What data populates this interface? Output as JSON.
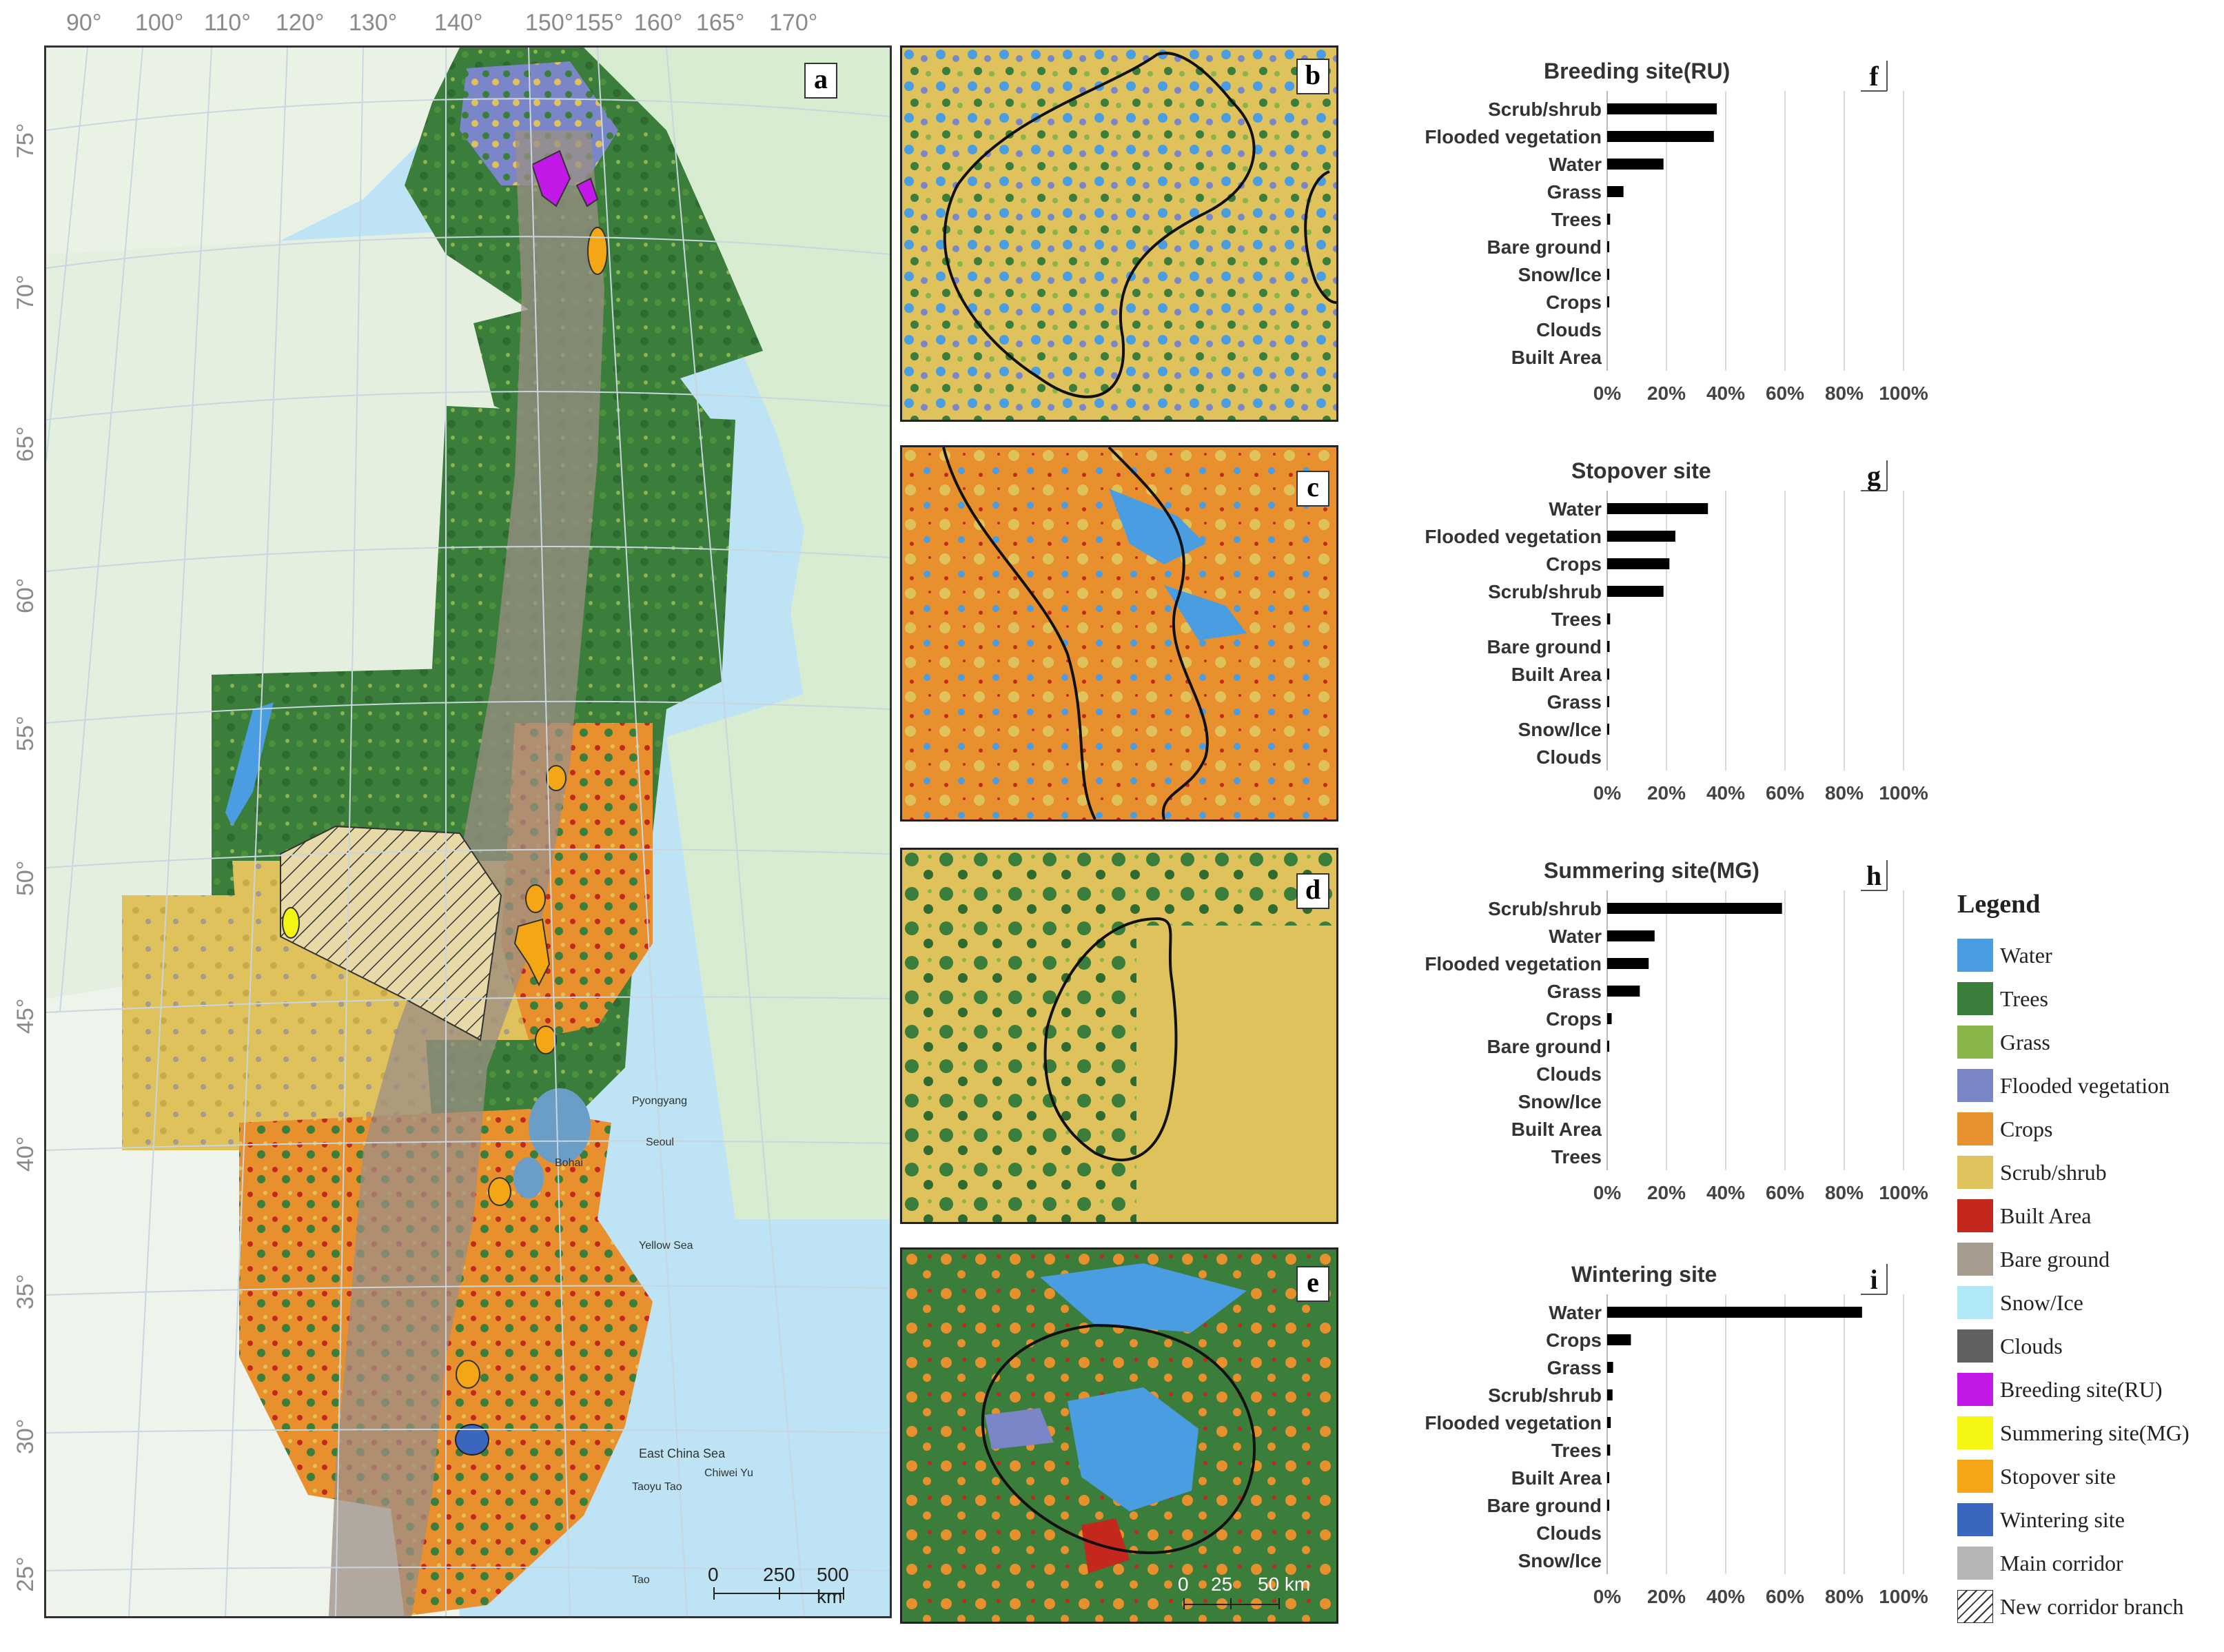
{
  "map": {
    "panel_letter": "a",
    "lon_labels": [
      "90°",
      "100°",
      "110°",
      "120°",
      "130°",
      "140°",
      "150°",
      "155°",
      "160°",
      "165°",
      "170°"
    ],
    "lat_labels": [
      "75°",
      "70°",
      "65°",
      "60°",
      "55°",
      "50°",
      "45°",
      "40°",
      "35°",
      "30°",
      "25°"
    ],
    "place_labels": {
      "pyongyang": "Pyongyang",
      "seoul": "Seoul",
      "yellow_sea": "Yellow Sea",
      "east_china_sea": "East China Sea",
      "bohai": "Bohai",
      "taoyu": "Taoyu Tao",
      "chiweiyu": "Chiwei Yu",
      "tao": "Tao"
    },
    "scalebar": {
      "ticks": [
        "0",
        "250",
        "500 km"
      ]
    }
  },
  "insets": [
    {
      "letter": "b"
    },
    {
      "letter": "c"
    },
    {
      "letter": "d"
    },
    {
      "letter": "e",
      "scalebar": {
        "ticks": [
          "0",
          "25",
          "50 km"
        ]
      }
    }
  ],
  "colors": {
    "water": "#4a9de0",
    "trees": "#3b7d3a",
    "grass": "#8ab54a",
    "flooded_vegetation": "#7a86c8",
    "crops": "#e8902e",
    "scrub_shrub": "#dfc25c",
    "built_area": "#c4281c",
    "bare_ground": "#a59b8f",
    "snow_ice": "#b0e8f8",
    "clouds": "#616161",
    "breeding_site": "#c218e8",
    "summering_site": "#f5f514",
    "stopover_site": "#f5a614",
    "wintering_site": "#3a66c0",
    "main_corridor": "#b5b5b5",
    "sea": "#bde3f5",
    "land_base": "#eef4ea"
  },
  "chart_data": [
    {
      "type": "bar",
      "letter": "f",
      "title": "Breeding site(RU)",
      "categories": [
        "Scrub/shrub",
        "Flooded vegetation",
        "Water",
        "Grass",
        "Trees",
        "Bare ground",
        "Snow/Ice",
        "Crops",
        "Clouds",
        "Built Area"
      ],
      "values": [
        37,
        36,
        19,
        5.5,
        1,
        0.6,
        0.5,
        0.5,
        0,
        0
      ],
      "xticks": [
        "0%",
        "20%",
        "40%",
        "60%",
        "80%",
        "100%"
      ],
      "xlim": [
        0,
        100
      ],
      "orientation": "horizontal",
      "grid": true
    },
    {
      "type": "bar",
      "letter": "g",
      "title": "Stopover site",
      "categories": [
        "Water",
        "Flooded vegetation",
        "Crops",
        "Scrub/shrub",
        "Trees",
        "Bare ground",
        "Built Area",
        "Grass",
        "Snow/Ice",
        "Clouds"
      ],
      "values": [
        34,
        23,
        21,
        19,
        1,
        0.8,
        0.5,
        0.3,
        0.2,
        0
      ],
      "xticks": [
        "0%",
        "20%",
        "40%",
        "60%",
        "80%",
        "100%"
      ],
      "xlim": [
        0,
        100
      ],
      "orientation": "horizontal",
      "grid": true
    },
    {
      "type": "bar",
      "letter": "h",
      "title": "Summering site(MG)",
      "categories": [
        "Scrub/shrub",
        "Water",
        "Flooded vegetation",
        "Grass",
        "Crops",
        "Bare ground",
        "Clouds",
        "Snow/Ice",
        "Built Area",
        "Trees"
      ],
      "values": [
        59,
        16,
        14,
        11,
        1.5,
        0.5,
        0,
        0,
        0,
        0
      ],
      "xticks": [
        "0%",
        "20%",
        "40%",
        "60%",
        "80%",
        "100%"
      ],
      "xlim": [
        0,
        100
      ],
      "orientation": "horizontal",
      "grid": true
    },
    {
      "type": "bar",
      "letter": "i",
      "title": "Wintering site",
      "categories": [
        "Water",
        "Crops",
        "Grass",
        "Scrub/shrub",
        "Flooded vegetation",
        "Trees",
        "Built Area",
        "Bare ground",
        "Clouds",
        "Snow/Ice"
      ],
      "values": [
        86,
        8,
        2,
        1.8,
        1.2,
        1,
        0.5,
        0.4,
        0,
        0
      ],
      "xticks": [
        "0%",
        "20%",
        "40%",
        "60%",
        "80%",
        "100%"
      ],
      "xlim": [
        0,
        100
      ],
      "orientation": "horizontal",
      "grid": true
    }
  ],
  "legend": {
    "title": "Legend",
    "items": [
      {
        "label": "Water",
        "color": "#4a9de0",
        "kind": "fill"
      },
      {
        "label": "Trees",
        "color": "#3b7d3a",
        "kind": "fill"
      },
      {
        "label": "Grass",
        "color": "#8ab54a",
        "kind": "fill"
      },
      {
        "label": "Flooded vegetation",
        "color": "#7a86c8",
        "kind": "fill"
      },
      {
        "label": "Crops",
        "color": "#e8902e",
        "kind": "fill"
      },
      {
        "label": "Scrub/shrub",
        "color": "#dfc25c",
        "kind": "fill"
      },
      {
        "label": "Built Area",
        "color": "#c4281c",
        "kind": "fill"
      },
      {
        "label": "Bare ground",
        "color": "#a59b8f",
        "kind": "fill"
      },
      {
        "label": "Snow/Ice",
        "color": "#b0e8f8",
        "kind": "fill"
      },
      {
        "label": "Clouds",
        "color": "#616161",
        "kind": "fill"
      },
      {
        "label": "Breeding site(RU)",
        "color": "#c218e8",
        "kind": "fill"
      },
      {
        "label": "Summering site(MG)",
        "color": "#f5f514",
        "kind": "fill"
      },
      {
        "label": "Stopover site",
        "color": "#f5a614",
        "kind": "fill"
      },
      {
        "label": "Wintering site",
        "color": "#3a66c0",
        "kind": "fill"
      },
      {
        "label": "Main corridor",
        "color": "#b5b5b5",
        "kind": "fill"
      },
      {
        "label": "New corridor branch",
        "color": "#ffffff",
        "kind": "hatch"
      }
    ]
  }
}
